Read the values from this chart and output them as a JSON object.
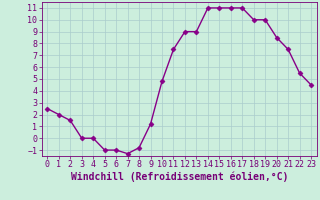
{
  "hours": [
    0,
    1,
    2,
    3,
    4,
    5,
    6,
    7,
    8,
    9,
    10,
    11,
    12,
    13,
    14,
    15,
    16,
    17,
    18,
    19,
    20,
    21,
    22,
    23
  ],
  "values": [
    2.5,
    2.0,
    1.5,
    0.0,
    0.0,
    -1.0,
    -1.0,
    -1.3,
    -0.8,
    1.2,
    4.8,
    7.5,
    9.0,
    9.0,
    11.0,
    11.0,
    11.0,
    11.0,
    10.0,
    10.0,
    8.5,
    7.5,
    5.5,
    4.5
  ],
  "color": "#880088",
  "bg_color": "#cceedd",
  "grid_color": "#aacccc",
  "xlabel": "Windchill (Refroidissement éolien,°C)",
  "ylim": [
    -1.5,
    11.5
  ],
  "xlim": [
    -0.5,
    23.5
  ],
  "yticks": [
    -1,
    0,
    1,
    2,
    3,
    4,
    5,
    6,
    7,
    8,
    9,
    10,
    11
  ],
  "xticks": [
    0,
    1,
    2,
    3,
    4,
    5,
    6,
    7,
    8,
    9,
    10,
    11,
    12,
    13,
    14,
    15,
    16,
    17,
    18,
    19,
    20,
    21,
    22,
    23
  ],
  "marker": "D",
  "marker_size": 2.5,
  "line_width": 1.0,
  "xlabel_fontsize": 7,
  "tick_fontsize": 6,
  "spine_color": "#770077"
}
